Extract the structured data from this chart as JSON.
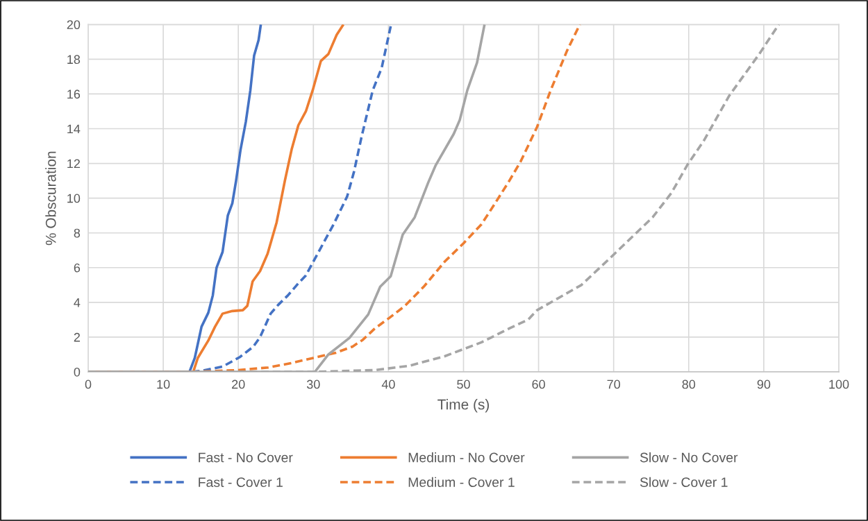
{
  "chart_data": {
    "type": "line",
    "xlabel": "Time (s)",
    "ylabel": "% Obscuration",
    "xlim": [
      0,
      100
    ],
    "xticks": [
      0,
      10,
      20,
      30,
      40,
      50,
      60,
      70,
      80,
      90,
      100
    ],
    "ylim": [
      0,
      20
    ],
    "yticks": [
      0,
      2,
      4,
      6,
      8,
      10,
      12,
      14,
      16,
      18,
      20
    ],
    "grid": true,
    "legend": "bottom",
    "marker": "none",
    "series": [
      {
        "name": "Fast - No Cover",
        "color": "#4472c4",
        "line_style": "solid",
        "x": [
          0,
          13.5,
          14.2,
          15.1,
          16,
          16.6,
          17.1,
          17.9,
          18.6,
          19.2,
          19.7,
          20.3,
          21,
          21.6,
          22.1,
          22.7,
          23
        ],
        "values": [
          0,
          0,
          0.8,
          2.6,
          3.4,
          4.4,
          6,
          6.9,
          9,
          9.7,
          11,
          12.8,
          14.4,
          16.2,
          18.2,
          19.1,
          20
        ]
      },
      {
        "name": "Fast - Cover 1",
        "color": "#4472c4",
        "line_style": "dashed",
        "x": [
          0,
          13.5,
          15,
          17.9,
          20.2,
          22,
          22.9,
          24.3,
          25.3,
          26.6,
          28,
          29,
          30.5,
          32.7,
          34.5,
          35.4,
          36.4,
          37.9,
          39.1,
          40.3
        ],
        "values": [
          0,
          0,
          0.05,
          0.3,
          0.85,
          1.45,
          2,
          3.35,
          3.85,
          4.4,
          5.1,
          5.55,
          6.75,
          8.5,
          10.1,
          11.5,
          13.5,
          16.2,
          17.5,
          19.9
        ]
      },
      {
        "name": "Medium - No Cover",
        "color": "#ed7d31",
        "line_style": "solid",
        "x": [
          0,
          14,
          14.6,
          16,
          16.9,
          17.9,
          19.2,
          20.6,
          21.2,
          21.9,
          22.9,
          23.9,
          25.1,
          26.2,
          27.1,
          28,
          29,
          29.9,
          31,
          32,
          33.1,
          34
        ],
        "values": [
          0,
          0,
          0.8,
          1.8,
          2.6,
          3.35,
          3.5,
          3.55,
          3.8,
          5.2,
          5.8,
          6.8,
          8.6,
          11,
          12.8,
          14.2,
          15,
          16.2,
          17.9,
          18.3,
          19.4,
          20
        ]
      },
      {
        "name": "Medium - Cover 1",
        "color": "#ed7d31",
        "line_style": "dashed",
        "x": [
          0,
          14,
          20,
          24,
          27,
          30,
          33,
          35.2,
          36.6,
          38.2,
          40.1,
          42.2,
          44.7,
          47.5,
          50,
          52.4,
          54.2,
          56.1,
          57.6,
          59.8,
          61.6,
          63.8,
          65.5
        ],
        "values": [
          0,
          0,
          0.1,
          0.25,
          0.5,
          0.8,
          1.1,
          1.45,
          1.85,
          2.5,
          3.1,
          3.8,
          4.9,
          6.35,
          7.4,
          8.5,
          9.7,
          11,
          12.1,
          14.1,
          16.2,
          18.5,
          20
        ]
      },
      {
        "name": "Slow - No Cover",
        "color": "#a5a5a5",
        "line_style": "solid",
        "x": [
          0,
          30.2,
          32,
          34.8,
          37.3,
          38.9,
          40.3,
          41.9,
          43.5,
          45.3,
          46.3,
          48.7,
          49.5,
          50.5,
          51.8,
          52.8
        ],
        "values": [
          0,
          0,
          1,
          1.95,
          3.3,
          4.9,
          5.5,
          7.9,
          8.9,
          10.9,
          11.9,
          13.7,
          14.5,
          16.2,
          17.8,
          20
        ]
      },
      {
        "name": "Slow - Cover 1",
        "color": "#a5a5a5",
        "line_style": "dashed",
        "x": [
          0,
          30,
          38.2,
          42.8,
          47.5,
          52.4,
          56.1,
          58.6,
          59.8,
          65.7,
          69.4,
          75.2,
          77.7,
          79.8,
          82,
          85.4,
          89.4,
          92
        ],
        "values": [
          0,
          0,
          0.1,
          0.35,
          0.9,
          1.7,
          2.5,
          3,
          3.55,
          5,
          6.5,
          8.9,
          10.3,
          11.9,
          13.3,
          15.9,
          18.3,
          20
        ]
      }
    ]
  }
}
